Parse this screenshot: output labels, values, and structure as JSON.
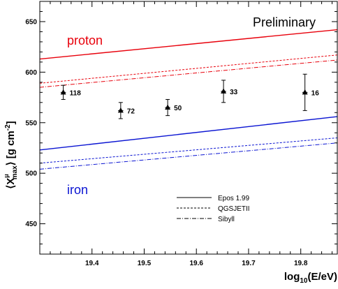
{
  "chart_data": {
    "type": "scatter",
    "title": "",
    "annotation": "Preliminary",
    "xlabel": {
      "main": "log",
      "sub": "10",
      "tail": "(E/eV)"
    },
    "ylabel": {
      "lead": "⟨X",
      "sup": "μ",
      "sub": "max",
      "tail": "⟩ [g cm",
      "power": "-2",
      "close": "]"
    },
    "xlim": [
      19.3,
      19.87
    ],
    "ylim": [
      420,
      670
    ],
    "xticks": [
      19.4,
      19.5,
      19.6,
      19.7,
      19.8
    ],
    "xtick_labels": [
      "19.4",
      "19.5",
      "19.6",
      "19.7",
      "19.8"
    ],
    "yticks": [
      450,
      500,
      550,
      600,
      650
    ],
    "ytick_labels": [
      "450",
      "500",
      "550",
      "600",
      "650"
    ],
    "grid": false,
    "legend": {
      "placement": "bottom-right",
      "entries": [
        {
          "label": "Epos 1.99",
          "style": "solid"
        },
        {
          "label": "QGSJETII",
          "style": "dashed"
        },
        {
          "label": "Sibyll",
          "style": "dashdot"
        }
      ]
    },
    "group_labels": [
      {
        "text": "proton",
        "color": "#e8000b"
      },
      {
        "text": "iron",
        "color": "#0a14d2"
      }
    ],
    "models": [
      {
        "model": "Epos 1.99",
        "primary": "proton",
        "color": "#e8000b",
        "style": "solid",
        "x": [
          19.3,
          19.87
        ],
        "y": [
          613,
          642
        ]
      },
      {
        "model": "QGSJETII",
        "primary": "proton",
        "color": "#e8000b",
        "style": "dashed",
        "x": [
          19.3,
          19.87
        ],
        "y": [
          589,
          617
        ]
      },
      {
        "model": "Sibyll",
        "primary": "proton",
        "color": "#e8000b",
        "style": "dashdot",
        "x": [
          19.3,
          19.87
        ],
        "y": [
          585,
          612
        ]
      },
      {
        "model": "Epos 1.99",
        "primary": "iron",
        "color": "#0a14d2",
        "style": "solid",
        "x": [
          19.3,
          19.87
        ],
        "y": [
          523,
          556
        ]
      },
      {
        "model": "QGSJETII",
        "primary": "iron",
        "color": "#0a14d2",
        "style": "dashed",
        "x": [
          19.3,
          19.87
        ],
        "y": [
          510,
          535
        ]
      },
      {
        "model": "Sibyll",
        "primary": "iron",
        "color": "#0a14d2",
        "style": "dashdot",
        "x": [
          19.3,
          19.87
        ],
        "y": [
          504,
          530
        ]
      }
    ],
    "points": [
      {
        "x": 19.345,
        "y": 580,
        "err": 7,
        "xerr": 0.005,
        "n": "118"
      },
      {
        "x": 19.455,
        "y": 562,
        "err": 8,
        "xerr": 0.005,
        "n": "72"
      },
      {
        "x": 19.545,
        "y": 565,
        "err": 8,
        "xerr": 0.005,
        "n": "50"
      },
      {
        "x": 19.652,
        "y": 581,
        "err": 11,
        "xerr": 0.005,
        "n": "33"
      },
      {
        "x": 19.808,
        "y": 580,
        "err": 18,
        "xerr": 0.005,
        "n": "16"
      }
    ]
  }
}
